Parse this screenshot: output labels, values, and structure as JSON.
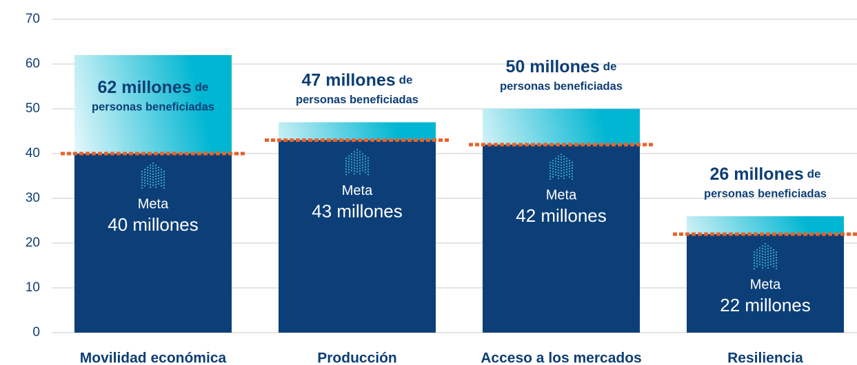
{
  "chart_data": {
    "type": "bar",
    "categories": [
      "Movilidad económica",
      "Producción",
      "Acceso a los mercados",
      "Resiliencia"
    ],
    "series": [
      {
        "values": [
          62,
          47,
          50,
          26
        ],
        "value_labels": [
          "62 millones",
          "47 millones",
          "50 millones",
          "26 millones"
        ],
        "color": "#00b6d2"
      },
      {
        "name": "Meta",
        "values": [
          40,
          43,
          42,
          22
        ],
        "value_labels": [
          "40 millones",
          "43 millones",
          "42 millones",
          "22 millones"
        ],
        "color": "#0c3f78",
        "marker_color": "#e8622a"
      }
    ],
    "value_label_suffix": "de",
    "value_label_caption": "personas beneficiadas",
    "ylim": [
      0,
      70
    ],
    "yticks": [
      0,
      10,
      20,
      30,
      40,
      50,
      60,
      70
    ],
    "grid": true
  }
}
